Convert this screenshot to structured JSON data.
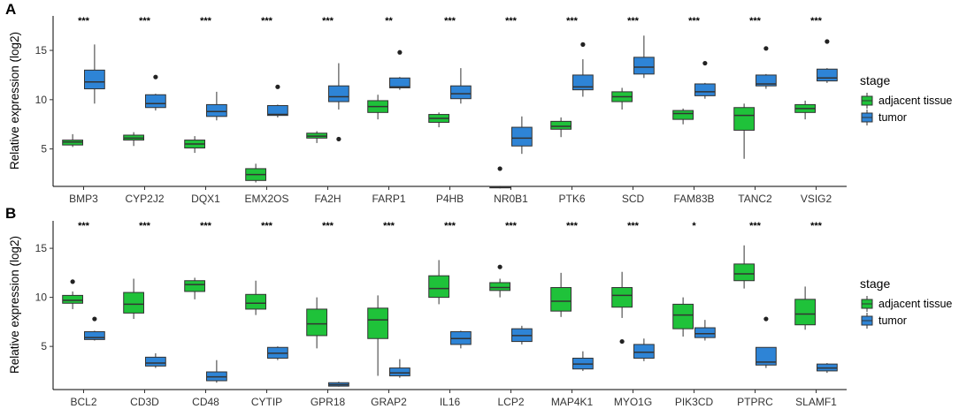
{
  "colors": {
    "adjacent": "#1fc23a",
    "tumor": "#2e84d6"
  },
  "chart_data": [
    {
      "panel": "A",
      "type": "box",
      "ylabel": "Relative expression (log2)",
      "xlabel": "",
      "ylim": [
        1.2,
        18.5
      ],
      "yticks": [
        5,
        10,
        15
      ],
      "legend": {
        "title": "stage",
        "items": [
          "adjacent tissue",
          "tumor"
        ]
      },
      "categories": [
        "BMP3",
        "CYP2J2",
        "DQX1",
        "EMX2OS",
        "FA2H",
        "FARP1",
        "P4HB",
        "NR0B1",
        "PTK6",
        "SCD",
        "FAM83B",
        "TANC2",
        "VSIG2"
      ],
      "significance": [
        "***",
        "***",
        "***",
        "***",
        "***",
        "**",
        "***",
        "***",
        "***",
        "***",
        "***",
        "***",
        "***"
      ],
      "series": [
        {
          "name": "adjacent tissue",
          "boxes": [
            {
              "whislo": 5.2,
              "q1": 5.4,
              "med": 5.7,
              "q3": 5.9,
              "whishi": 6.5,
              "outliers": []
            },
            {
              "whislo": 5.3,
              "q1": 5.9,
              "med": 6.1,
              "q3": 6.4,
              "whishi": 6.7,
              "outliers": []
            },
            {
              "whislo": 4.6,
              "q1": 5.1,
              "med": 5.5,
              "q3": 5.9,
              "whishi": 6.3,
              "outliers": []
            },
            {
              "whislo": 1.6,
              "q1": 1.8,
              "med": 2.4,
              "q3": 3.0,
              "whishi": 3.5,
              "outliers": []
            },
            {
              "whislo": 5.6,
              "q1": 6.1,
              "med": 6.3,
              "q3": 6.6,
              "whishi": 6.8,
              "outliers": []
            },
            {
              "whislo": 8.0,
              "q1": 8.7,
              "med": 9.3,
              "q3": 9.9,
              "whishi": 10.5,
              "outliers": []
            },
            {
              "whislo": 7.2,
              "q1": 7.7,
              "med": 8.1,
              "q3": 8.5,
              "whishi": 8.7,
              "outliers": []
            },
            {
              "whislo": 1.0,
              "q1": 1.05,
              "med": 1.1,
              "q3": 1.2,
              "whishi": 1.25,
              "outliers": [
                3.0
              ]
            },
            {
              "whislo": 6.2,
              "q1": 7.0,
              "med": 7.3,
              "q3": 7.8,
              "whishi": 8.2,
              "outliers": []
            },
            {
              "whislo": 9.0,
              "q1": 9.8,
              "med": 10.3,
              "q3": 10.8,
              "whishi": 11.2,
              "outliers": []
            },
            {
              "whislo": 7.5,
              "q1": 8.0,
              "med": 8.6,
              "q3": 8.9,
              "whishi": 9.1,
              "outliers": []
            },
            {
              "whislo": 4.0,
              "q1": 6.9,
              "med": 8.4,
              "q3": 9.2,
              "whishi": 9.6,
              "outliers": []
            },
            {
              "whislo": 8.0,
              "q1": 8.7,
              "med": 9.1,
              "q3": 9.5,
              "whishi": 9.9,
              "outliers": []
            }
          ]
        },
        {
          "name": "tumor",
          "boxes": [
            {
              "whislo": 9.6,
              "q1": 11.1,
              "med": 11.8,
              "q3": 13.0,
              "whishi": 15.6,
              "outliers": []
            },
            {
              "whislo": 8.9,
              "q1": 9.2,
              "med": 9.6,
              "q3": 10.5,
              "whishi": 10.6,
              "outliers": [
                12.3
              ]
            },
            {
              "whislo": 7.9,
              "q1": 8.3,
              "med": 8.8,
              "q3": 9.5,
              "whishi": 10.8,
              "outliers": []
            },
            {
              "whislo": 8.2,
              "q1": 8.4,
              "med": 8.5,
              "q3": 9.4,
              "whishi": 9.5,
              "outliers": [
                11.3
              ]
            },
            {
              "whislo": 9.0,
              "q1": 9.8,
              "med": 10.3,
              "q3": 11.4,
              "whishi": 13.7,
              "outliers": [
                6.0
              ]
            },
            {
              "whislo": 11.0,
              "q1": 11.2,
              "med": 11.3,
              "q3": 12.2,
              "whishi": 12.3,
              "outliers": [
                14.8
              ]
            },
            {
              "whislo": 9.6,
              "q1": 10.1,
              "med": 10.6,
              "q3": 11.4,
              "whishi": 13.2,
              "outliers": []
            },
            {
              "whislo": 4.5,
              "q1": 5.3,
              "med": 6.1,
              "q3": 7.2,
              "whishi": 8.3,
              "outliers": []
            },
            {
              "whislo": 10.3,
              "q1": 11.0,
              "med": 11.3,
              "q3": 12.5,
              "whishi": 14.1,
              "outliers": [
                15.6
              ]
            },
            {
              "whislo": 12.2,
              "q1": 12.6,
              "med": 13.3,
              "q3": 14.3,
              "whishi": 16.5,
              "outliers": []
            },
            {
              "whislo": 10.1,
              "q1": 10.4,
              "med": 10.8,
              "q3": 11.6,
              "whishi": 11.7,
              "outliers": [
                13.7
              ]
            },
            {
              "whislo": 11.1,
              "q1": 11.4,
              "med": 11.6,
              "q3": 12.5,
              "whishi": 12.6,
              "outliers": [
                15.2
              ]
            },
            {
              "whislo": 11.7,
              "q1": 11.9,
              "med": 12.2,
              "q3": 13.1,
              "whishi": 13.2,
              "outliers": [
                15.9
              ]
            }
          ]
        }
      ]
    },
    {
      "panel": "B",
      "type": "box",
      "ylabel": "Relative expression (log2)",
      "xlabel": "",
      "ylim": [
        0.6,
        17.8
      ],
      "yticks": [
        5,
        10,
        15
      ],
      "legend": {
        "title": "stage",
        "items": [
          "adjacent tissue",
          "tumor"
        ]
      },
      "categories": [
        "BCL2",
        "CD3D",
        "CD48",
        "CYTIP",
        "GPR18",
        "GRAP2",
        "IL16",
        "LCP2",
        "MAP4K1",
        "MYO1G",
        "PIK3CD",
        "PTPRC",
        "SLAMF1"
      ],
      "significance": [
        "***",
        "***",
        "***",
        "***",
        "***",
        "***",
        "***",
        "***",
        "***",
        "***",
        "*",
        "***",
        "***"
      ],
      "series": [
        {
          "name": "adjacent tissue",
          "boxes": [
            {
              "whislo": 8.8,
              "q1": 9.4,
              "med": 9.7,
              "q3": 10.2,
              "whishi": 10.6,
              "outliers": [
                11.6
              ]
            },
            {
              "whislo": 7.8,
              "q1": 8.4,
              "med": 9.3,
              "q3": 10.5,
              "whishi": 11.9,
              "outliers": []
            },
            {
              "whislo": 9.8,
              "q1": 10.6,
              "med": 11.3,
              "q3": 11.7,
              "whishi": 12.0,
              "outliers": []
            },
            {
              "whislo": 8.2,
              "q1": 8.8,
              "med": 9.4,
              "q3": 10.3,
              "whishi": 11.7,
              "outliers": []
            },
            {
              "whislo": 4.8,
              "q1": 6.1,
              "med": 7.3,
              "q3": 8.8,
              "whishi": 10.0,
              "outliers": []
            },
            {
              "whislo": 2.0,
              "q1": 5.8,
              "med": 7.7,
              "q3": 8.9,
              "whishi": 10.2,
              "outliers": []
            },
            {
              "whislo": 9.3,
              "q1": 10.0,
              "med": 10.9,
              "q3": 12.2,
              "whishi": 13.8,
              "outliers": []
            },
            {
              "whislo": 10.0,
              "q1": 10.7,
              "med": 11.0,
              "q3": 11.5,
              "whishi": 11.9,
              "outliers": [
                13.1
              ]
            },
            {
              "whislo": 8.0,
              "q1": 8.6,
              "med": 9.6,
              "q3": 11.0,
              "whishi": 12.5,
              "outliers": []
            },
            {
              "whislo": 7.9,
              "q1": 9.0,
              "med": 10.2,
              "q3": 11.0,
              "whishi": 12.6,
              "outliers": [
                5.5
              ]
            },
            {
              "whislo": 6.0,
              "q1": 6.8,
              "med": 8.2,
              "q3": 9.3,
              "whishi": 10.0,
              "outliers": []
            },
            {
              "whislo": 10.9,
              "q1": 11.7,
              "med": 12.4,
              "q3": 13.4,
              "whishi": 15.3,
              "outliers": []
            },
            {
              "whislo": 6.7,
              "q1": 7.2,
              "med": 8.3,
              "q3": 9.8,
              "whishi": 11.1,
              "outliers": []
            }
          ]
        },
        {
          "name": "tumor",
          "boxes": [
            {
              "whislo": 5.6,
              "q1": 5.7,
              "med": 5.9,
              "q3": 6.5,
              "whishi": 6.6,
              "outliers": [
                7.8
              ]
            },
            {
              "whislo": 2.8,
              "q1": 3.0,
              "med": 3.3,
              "q3": 3.9,
              "whishi": 4.3,
              "outliers": []
            },
            {
              "whislo": 1.3,
              "q1": 1.5,
              "med": 1.9,
              "q3": 2.4,
              "whishi": 3.6,
              "outliers": []
            },
            {
              "whislo": 3.6,
              "q1": 3.8,
              "med": 4.3,
              "q3": 4.9,
              "whishi": 5.0,
              "outliers": []
            },
            {
              "whislo": 0.9,
              "q1": 0.95,
              "med": 1.1,
              "q3": 1.3,
              "whishi": 1.4,
              "outliers": []
            },
            {
              "whislo": 1.8,
              "q1": 2.0,
              "med": 2.3,
              "q3": 2.8,
              "whishi": 3.7,
              "outliers": []
            },
            {
              "whislo": 4.8,
              "q1": 5.2,
              "med": 5.8,
              "q3": 6.5,
              "whishi": 6.6,
              "outliers": []
            },
            {
              "whislo": 5.2,
              "q1": 5.5,
              "med": 6.1,
              "q3": 6.8,
              "whishi": 7.1,
              "outliers": []
            },
            {
              "whislo": 2.5,
              "q1": 2.7,
              "med": 3.2,
              "q3": 3.8,
              "whishi": 4.5,
              "outliers": []
            },
            {
              "whislo": 3.5,
              "q1": 3.8,
              "med": 4.4,
              "q3": 5.2,
              "whishi": 5.8,
              "outliers": []
            },
            {
              "whislo": 5.6,
              "q1": 5.9,
              "med": 6.3,
              "q3": 6.9,
              "whishi": 7.7,
              "outliers": []
            },
            {
              "whislo": 2.8,
              "q1": 3.1,
              "med": 3.4,
              "q3": 4.9,
              "whishi": 4.9,
              "outliers": [
                7.8
              ]
            },
            {
              "whislo": 2.3,
              "q1": 2.5,
              "med": 2.8,
              "q3": 3.2,
              "whishi": 3.3,
              "outliers": []
            }
          ]
        }
      ]
    }
  ]
}
